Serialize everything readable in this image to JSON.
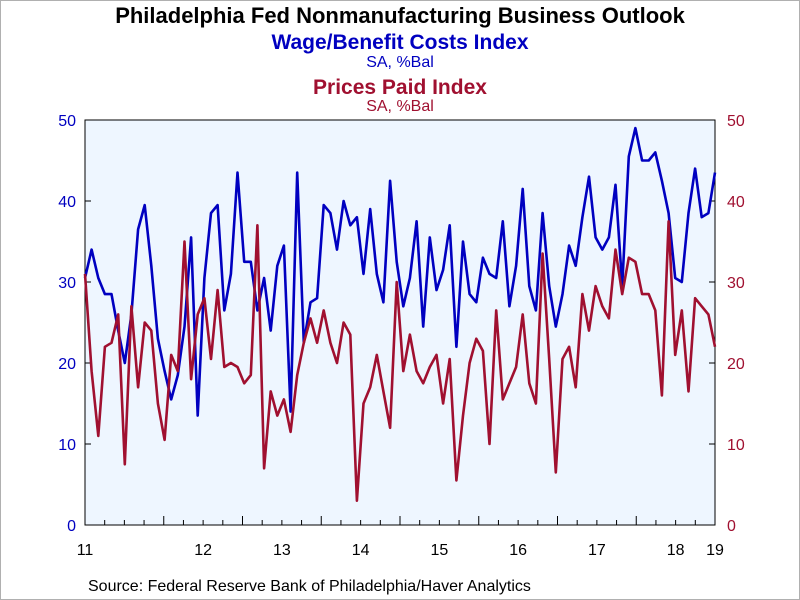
{
  "title": "Philadelphia Fed Nonmanufacturing Business Outlook",
  "source": "Source:  Federal Reserve Bank of Philadelphia/Haver Analytics",
  "colors": {
    "wage": "#0000c0",
    "prices": "#a01030",
    "plot_bg": "#eef6ff",
    "axis": "#000000"
  },
  "chart_data": {
    "type": "line",
    "title": "Philadelphia Fed Nonmanufacturing Business Outlook",
    "x_ticks": [
      "11",
      "12",
      "13",
      "14",
      "15",
      "16",
      "17",
      "18",
      "19"
    ],
    "x_range": [
      2011,
      2019
    ],
    "x_start": 2011.0,
    "x_step": 0.08333,
    "ylim": [
      0,
      50
    ],
    "y_ticks": [
      0,
      10,
      20,
      30,
      40,
      50
    ],
    "y_ticks_right": [
      0,
      10,
      20,
      30,
      40,
      50
    ],
    "grid": false,
    "series": [
      {
        "name": "Wage/Benefit Costs Index",
        "units": "SA, %Bal",
        "axis": "left",
        "color": "#0000c0",
        "values": [
          30.5,
          34.0,
          30.5,
          28.5,
          28.5,
          24.0,
          20.0,
          26.0,
          36.5,
          39.5,
          32.0,
          23.0,
          19.0,
          15.5,
          18.5,
          24.5,
          35.5,
          13.5,
          30.5,
          38.5,
          39.5,
          26.5,
          31.0,
          43.5,
          32.5,
          32.5,
          26.5,
          30.5,
          24.0,
          32.0,
          34.5,
          14.0,
          43.5,
          22.5,
          27.5,
          28.0,
          39.5,
          38.5,
          34.0,
          40.0,
          37.0,
          38.0,
          31.0,
          39.0,
          31.0,
          27.5,
          42.5,
          32.5,
          27.0,
          30.5,
          37.5,
          24.5,
          35.5,
          29.0,
          31.5,
          37.0,
          22.0,
          35.0,
          28.5,
          27.5,
          33.0,
          31.0,
          30.5,
          37.5,
          27.0,
          32.0,
          41.5,
          29.5,
          26.5,
          38.5,
          29.5,
          24.5,
          28.5,
          34.5,
          32.0,
          38.0,
          43.0,
          35.5,
          34.0,
          35.5,
          42.0,
          29.5,
          45.5,
          49.0,
          45.0,
          45.0,
          46.0,
          42.5,
          38.5,
          30.5,
          30.0,
          38.5,
          44.0,
          38.0,
          38.5,
          43.5
        ]
      },
      {
        "name": "Prices Paid Index",
        "units": "SA, %Bal",
        "axis": "right",
        "color": "#a01030",
        "values": [
          31.0,
          19.0,
          11.0,
          22.0,
          22.5,
          26.0,
          7.5,
          27.0,
          17.0,
          25.0,
          24.0,
          15.0,
          10.5,
          21.0,
          19.0,
          35.0,
          18.0,
          26.0,
          28.0,
          20.5,
          29.0,
          19.5,
          20.0,
          19.5,
          17.5,
          18.5,
          37.0,
          7.0,
          16.5,
          13.5,
          15.5,
          11.5,
          18.5,
          22.5,
          25.5,
          22.5,
          26.5,
          22.5,
          20.0,
          25.0,
          23.5,
          3.0,
          15.0,
          17.0,
          21.0,
          16.5,
          12.0,
          30.0,
          19.0,
          23.5,
          19.0,
          17.5,
          19.5,
          21.0,
          15.0,
          20.5,
          5.5,
          13.5,
          20.0,
          23.0,
          21.5,
          10.0,
          26.5,
          15.5,
          17.5,
          19.5,
          26.0,
          17.5,
          15.0,
          33.5,
          20.5,
          6.5,
          20.5,
          22.0,
          17.0,
          28.5,
          24.0,
          29.5,
          27.0,
          25.5,
          34.0,
          28.5,
          33.0,
          32.5,
          28.5,
          28.5,
          26.5,
          16.0,
          37.5,
          21.0,
          26.5,
          16.5,
          28.0,
          27.0,
          26.0,
          22.0
        ]
      }
    ]
  },
  "header": {
    "s1_label": "Wage/Benefit Costs Index",
    "s1_units": "SA, %Bal",
    "s2_label": "Prices Paid Index",
    "s2_units": "SA, %Bal"
  }
}
